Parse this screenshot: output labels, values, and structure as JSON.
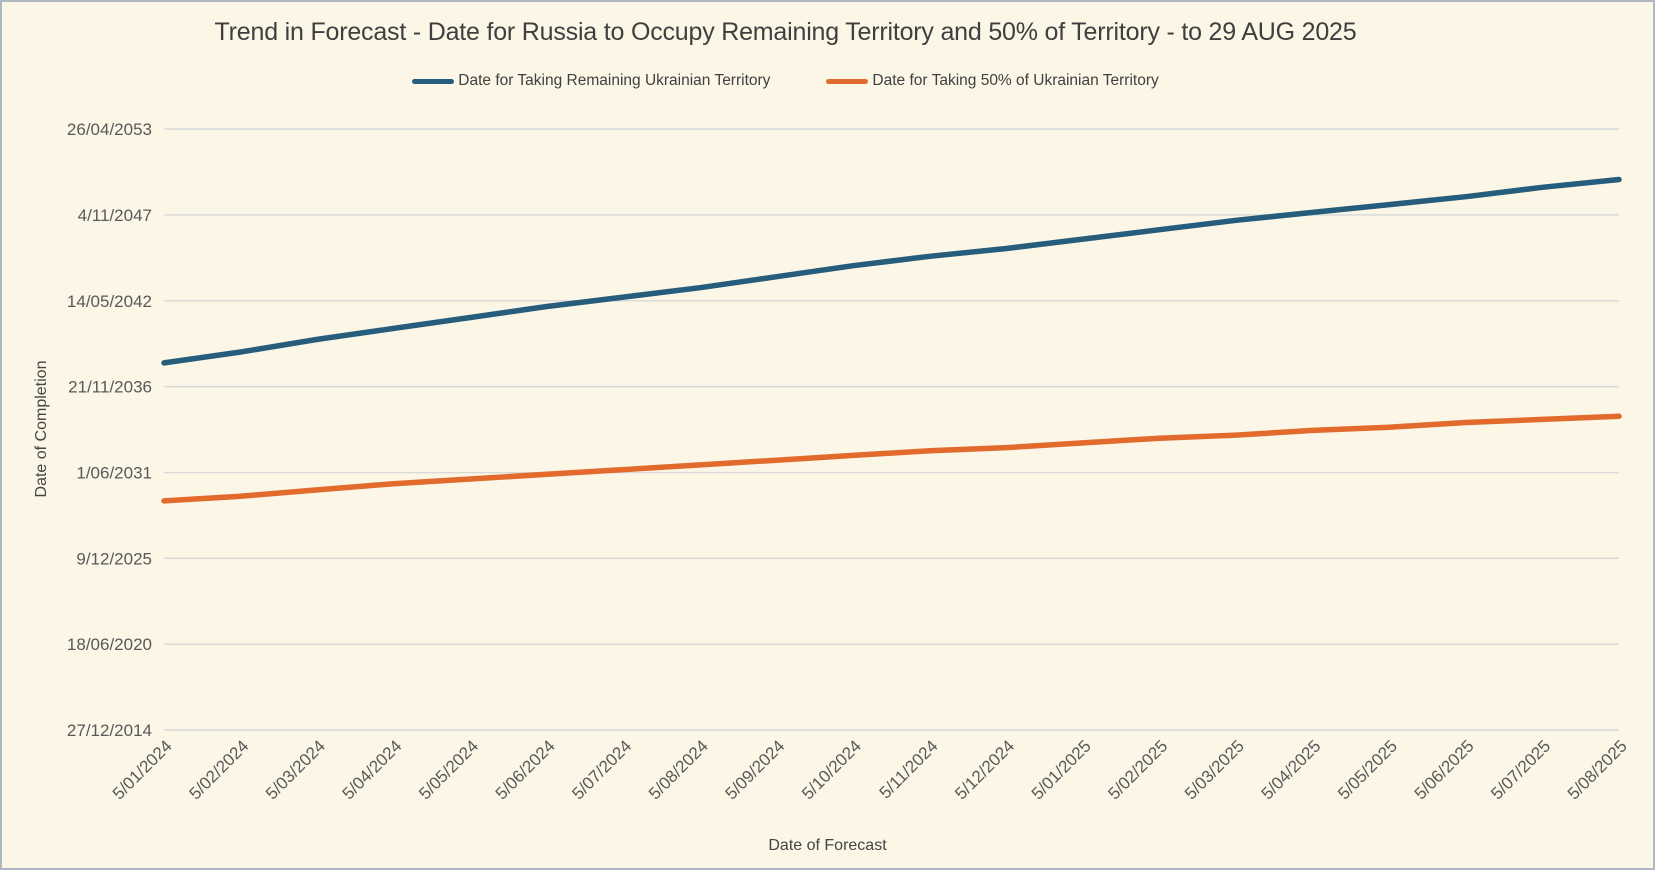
{
  "chart_data": {
    "type": "line",
    "title": "Trend in Forecast - Date for Russia to Occupy Remaining Territory and 50% of Territory - to 29 AUG 2025",
    "xlabel": "Date of Forecast",
    "ylabel": "Date of Completion",
    "legend_position": "top",
    "grid": "horizontal-only",
    "x_categories": [
      "5/01/2024",
      "5/02/2024",
      "5/03/2024",
      "5/04/2024",
      "5/05/2024",
      "5/06/2024",
      "5/07/2024",
      "5/08/2024",
      "5/09/2024",
      "5/10/2024",
      "5/11/2024",
      "5/12/2024",
      "5/01/2025",
      "5/02/2025",
      "5/03/2025",
      "5/04/2025",
      "5/05/2025",
      "5/06/2025",
      "5/07/2025",
      "5/08/2025"
    ],
    "y_ticks": [
      {
        "label": "27/12/2014",
        "value": 2014.99
      },
      {
        "label": "18/06/2020",
        "value": 2020.46
      },
      {
        "label": "9/12/2025",
        "value": 2025.94
      },
      {
        "label": "1/06/2031",
        "value": 2031.41
      },
      {
        "label": "21/11/2036",
        "value": 2036.89
      },
      {
        "label": "14/05/2042",
        "value": 2042.36
      },
      {
        "label": "4/11/2047",
        "value": 2047.84
      },
      {
        "label": "26/04/2053",
        "value": 2053.32
      }
    ],
    "y_range": [
      2014.99,
      2053.32
    ],
    "y_axis_note": "date ticks spaced 2000 days apart; values encoded as decimal years",
    "series": [
      {
        "name": "Date for Taking Remaining Ukrainian Territory",
        "color": "#265D7C",
        "values": [
          2038.4,
          2039.1,
          2039.9,
          2040.6,
          2041.3,
          2042.0,
          2042.6,
          2043.2,
          2043.9,
          2044.6,
          2045.2,
          2045.7,
          2046.3,
          2046.9,
          2047.5,
          2048.0,
          2048.5,
          2049.0,
          2049.6,
          2050.1
        ]
      },
      {
        "name": "Date for Taking  50% of Ukrainian Territory",
        "color": "#E16A2C",
        "values": [
          2029.6,
          2029.9,
          2030.3,
          2030.7,
          2031.0,
          2031.3,
          2031.6,
          2031.9,
          2032.2,
          2032.5,
          2032.8,
          2033.0,
          2033.3,
          2033.6,
          2033.8,
          2034.1,
          2034.3,
          2034.6,
          2034.8,
          2035.0
        ]
      }
    ]
  },
  "colors": {
    "background": "#FBF6E6",
    "border": "#AEB8C2",
    "gridline": "#D8D8D8",
    "tick_text": "#595959",
    "title_text": "#3F3F3F",
    "axis_title_text": "#444444"
  }
}
